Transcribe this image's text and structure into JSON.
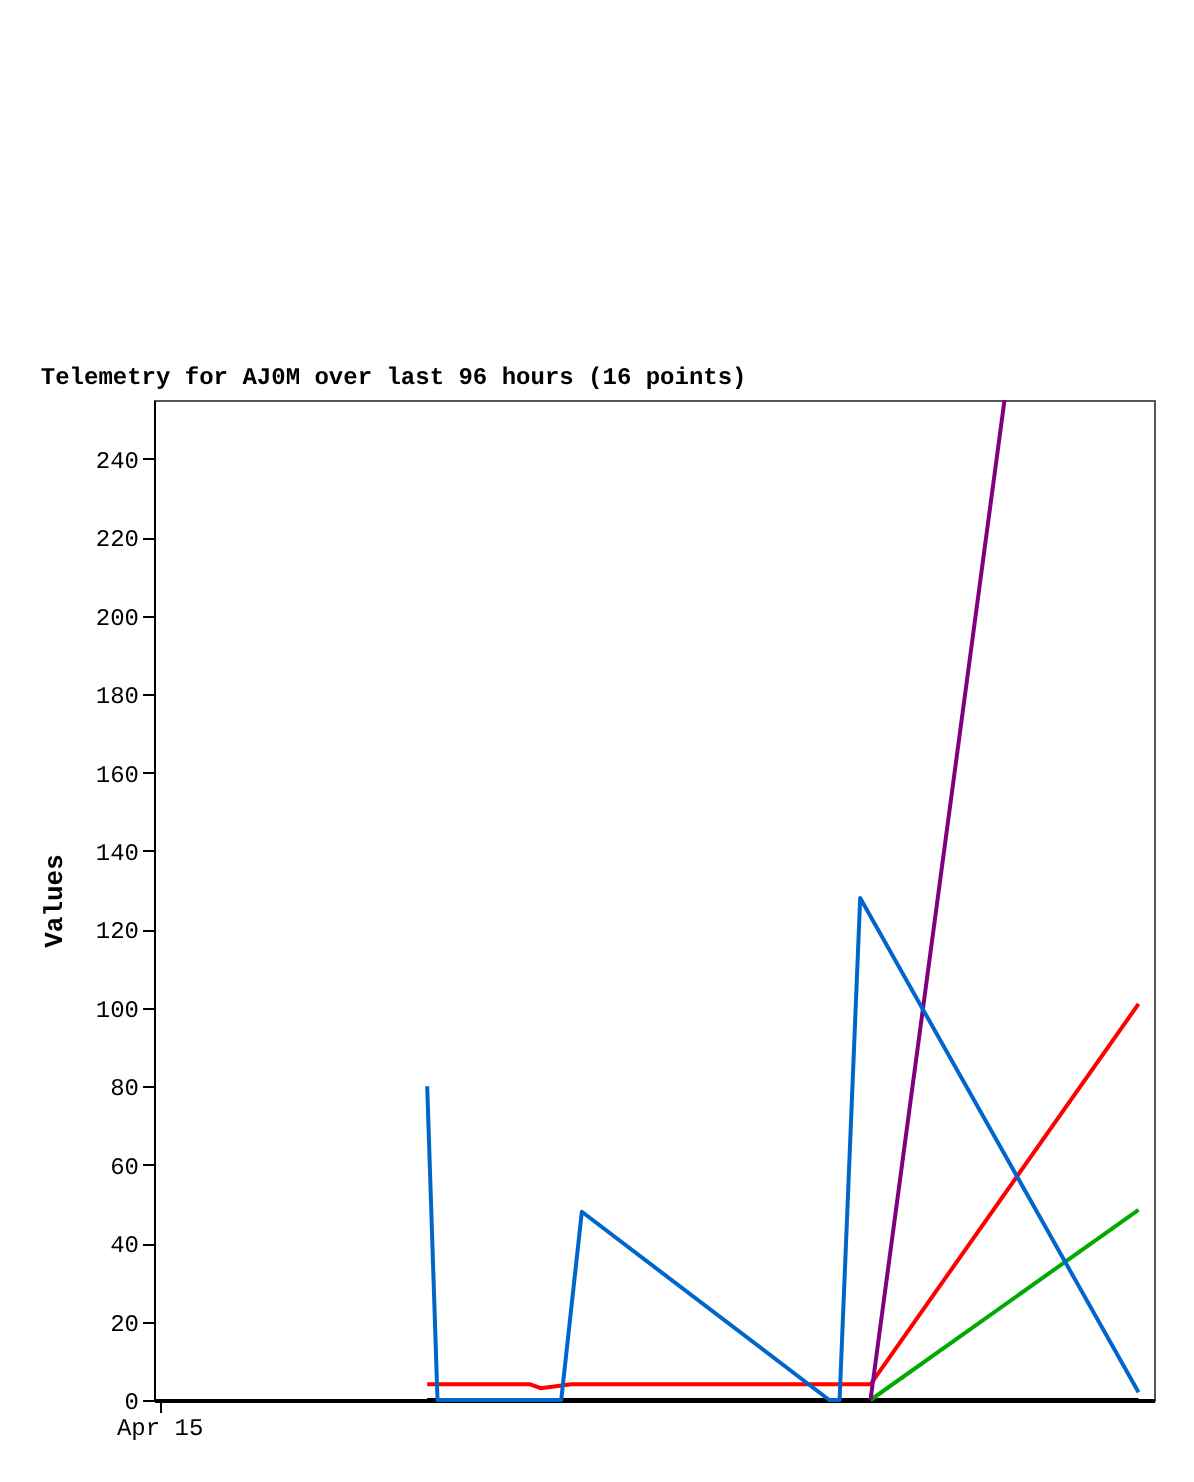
{
  "chart_data": {
    "type": "line",
    "title": "Telemetry for AJ0M over last 96 hours (16 points)",
    "ylabel": "Values",
    "categories": [
      "Apr 15",
      null,
      null,
      null,
      null,
      null,
      null,
      null,
      null,
      null,
      null,
      null,
      null,
      null,
      null,
      null,
      null,
      null,
      null,
      null,
      null,
      null,
      null,
      null,
      null,
      null,
      null,
      null,
      null,
      null,
      null,
      null,
      null,
      null,
      null,
      null,
      null,
      null,
      null,
      null,
      null,
      null,
      null,
      null,
      null,
      null,
      null,
      null,
      null,
      null,
      null,
      null,
      null,
      null,
      null,
      null,
      null,
      null,
      null,
      null,
      null,
      null,
      null,
      null,
      null,
      null,
      null,
      null,
      null,
      null,
      null,
      null,
      null,
      null,
      null,
      null,
      null,
      null,
      null,
      null,
      null,
      null,
      null,
      null,
      null,
      null,
      null,
      null,
      null,
      null,
      null,
      null,
      null,
      null,
      null,
      null,
      null
    ],
    "ylim": [
      0,
      255
    ],
    "yticks": [
      0,
      20,
      40,
      60,
      80,
      100,
      120,
      140,
      160,
      180,
      200,
      220,
      240
    ],
    "grid": false,
    "marker": "none",
    "line_style": "solid",
    "series": [
      {
        "color": "#000000",
        "values": [
          null,
          null,
          null,
          null,
          null,
          null,
          null,
          null,
          null,
          null,
          null,
          null,
          null,
          null,
          null,
          null,
          null,
          null,
          null,
          null,
          null,
          null,
          null,
          null,
          null,
          null,
          0,
          null,
          null,
          null,
          null,
          null,
          null,
          null,
          null,
          null,
          null,
          null,
          null,
          null,
          null,
          null,
          null,
          null,
          null,
          null,
          null,
          null,
          null,
          null,
          null,
          null,
          null,
          null,
          null,
          null,
          null,
          null,
          null,
          null,
          null,
          null,
          null,
          null,
          null,
          null,
          null,
          null,
          null,
          null,
          null,
          null,
          null,
          null,
          null,
          null,
          null,
          null,
          null,
          null,
          null,
          null,
          null,
          null,
          null,
          null,
          null,
          null,
          null,
          null,
          null,
          null,
          null,
          null,
          null,
          0,
          null
        ]
      },
      {
        "color": "#ff0000",
        "values": [
          null,
          null,
          null,
          null,
          null,
          null,
          null,
          null,
          null,
          null,
          null,
          null,
          null,
          null,
          null,
          null,
          null,
          null,
          null,
          null,
          null,
          null,
          null,
          null,
          null,
          null,
          4,
          null,
          null,
          null,
          null,
          null,
          null,
          null,
          null,
          null,
          4,
          3,
          null,
          null,
          4,
          null,
          null,
          null,
          null,
          null,
          null,
          null,
          null,
          null,
          null,
          null,
          null,
          null,
          null,
          null,
          null,
          null,
          null,
          null,
          null,
          null,
          null,
          null,
          null,
          null,
          null,
          null,
          null,
          4,
          null,
          null,
          null,
          null,
          null,
          null,
          null,
          null,
          null,
          null,
          null,
          null,
          null,
          null,
          null,
          null,
          null,
          null,
          null,
          null,
          null,
          null,
          null,
          null,
          null,
          101,
          null
        ]
      },
      {
        "color": "#00aa00",
        "values": [
          null,
          null,
          null,
          null,
          null,
          null,
          null,
          null,
          null,
          null,
          null,
          null,
          null,
          null,
          null,
          null,
          null,
          null,
          null,
          null,
          null,
          null,
          null,
          null,
          null,
          null,
          null,
          null,
          null,
          null,
          null,
          null,
          null,
          null,
          null,
          null,
          null,
          null,
          null,
          null,
          null,
          null,
          null,
          null,
          null,
          null,
          null,
          null,
          null,
          null,
          null,
          null,
          null,
          null,
          null,
          null,
          null,
          null,
          null,
          null,
          null,
          null,
          null,
          null,
          null,
          null,
          null,
          null,
          null,
          0,
          null,
          null,
          null,
          null,
          null,
          null,
          null,
          null,
          null,
          null,
          null,
          null,
          null,
          null,
          null,
          null,
          null,
          null,
          null,
          null,
          null,
          null,
          null,
          null,
          null,
          48.5,
          null
        ]
      },
      {
        "color": "#800080",
        "values": [
          null,
          null,
          null,
          null,
          null,
          null,
          null,
          null,
          null,
          null,
          null,
          null,
          null,
          null,
          null,
          null,
          null,
          null,
          null,
          null,
          null,
          null,
          null,
          null,
          null,
          null,
          null,
          null,
          null,
          null,
          null,
          null,
          null,
          null,
          null,
          null,
          null,
          null,
          null,
          null,
          null,
          null,
          null,
          null,
          null,
          null,
          null,
          null,
          null,
          null,
          null,
          null,
          null,
          null,
          null,
          null,
          null,
          null,
          null,
          null,
          null,
          null,
          null,
          null,
          null,
          null,
          null,
          null,
          null,
          0,
          null,
          null,
          null,
          null,
          null,
          null,
          null,
          null,
          null,
          null,
          null,
          null,
          255,
          null,
          null,
          null,
          null,
          null,
          null,
          null,
          null,
          null,
          null,
          null,
          null,
          null,
          null
        ]
      },
      {
        "color": "#0066cc",
        "values": [
          null,
          null,
          null,
          null,
          null,
          null,
          null,
          null,
          null,
          null,
          null,
          null,
          null,
          null,
          null,
          null,
          null,
          null,
          null,
          null,
          null,
          null,
          null,
          null,
          null,
          null,
          80,
          0,
          null,
          null,
          null,
          null,
          null,
          null,
          null,
          null,
          null,
          null,
          null,
          0,
          null,
          48,
          null,
          null,
          null,
          null,
          null,
          null,
          null,
          null,
          null,
          null,
          null,
          null,
          null,
          null,
          null,
          null,
          null,
          null,
          null,
          null,
          null,
          null,
          null,
          0,
          0,
          null,
          128,
          null,
          null,
          null,
          null,
          null,
          null,
          null,
          null,
          null,
          null,
          null,
          null,
          null,
          null,
          null,
          null,
          null,
          null,
          null,
          null,
          null,
          null,
          null,
          null,
          null,
          null,
          2,
          null
        ]
      }
    ]
  }
}
